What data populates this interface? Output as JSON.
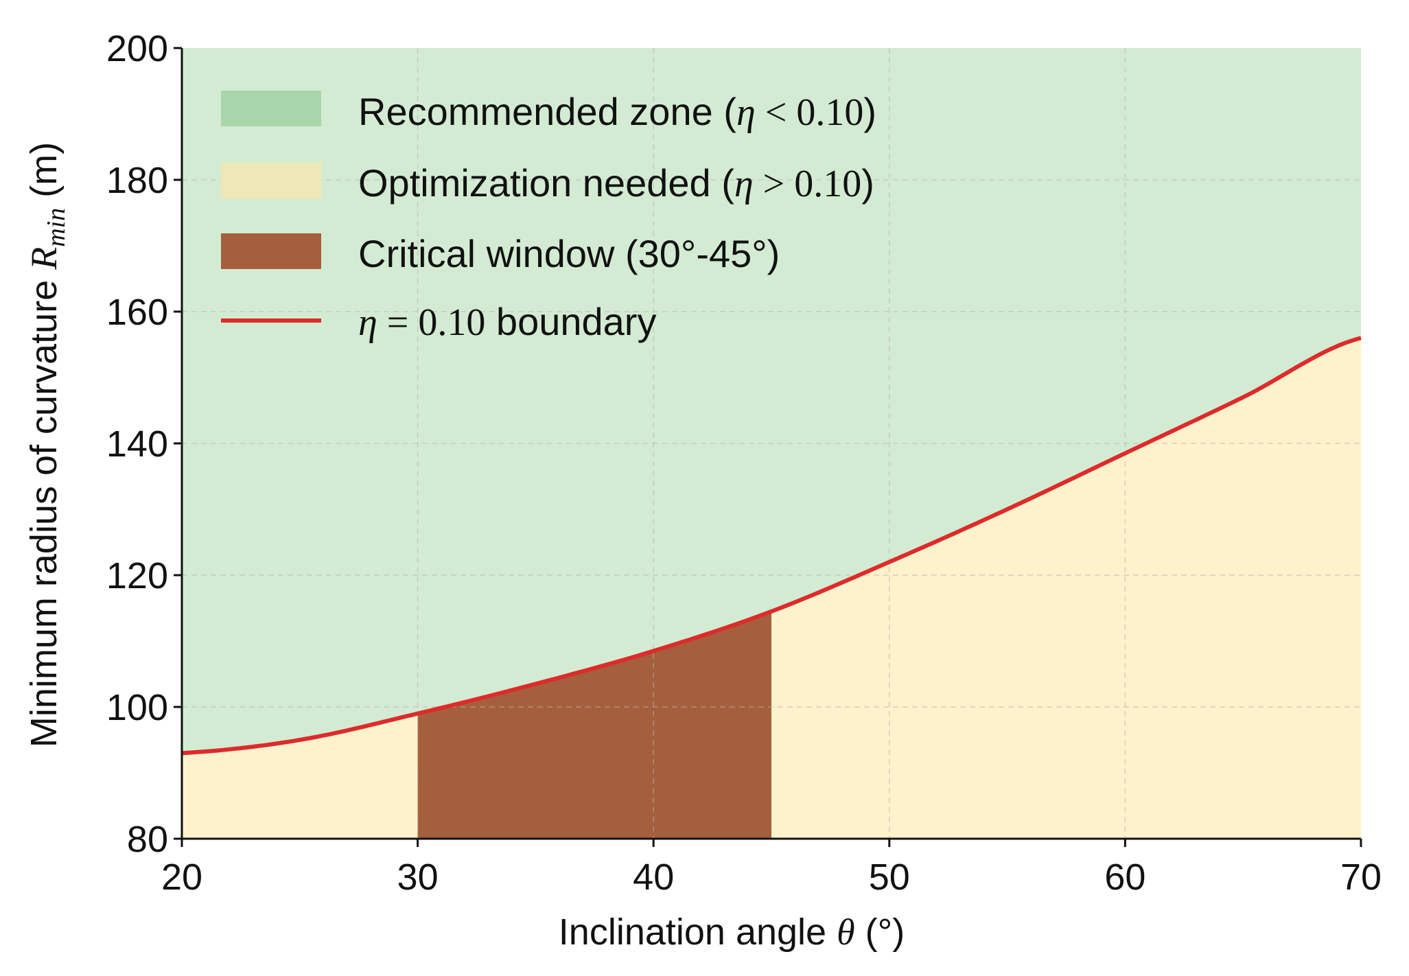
{
  "chart_data": {
    "type": "area",
    "xlabel": {
      "prefix": "Inclination angle ",
      "symbol": "θ",
      "suffix": " (°)"
    },
    "ylabel": {
      "prefix": "Minimum radius of curvature ",
      "symbol": "R",
      "subscript": "min",
      "suffix": " (m)"
    },
    "xlim": [
      20,
      70
    ],
    "ylim": [
      80,
      200
    ],
    "x_ticks": [
      20,
      30,
      40,
      50,
      60,
      70
    ],
    "y_ticks": [
      80,
      100,
      120,
      140,
      160,
      180,
      200
    ],
    "grid": true,
    "legend_position": "top-left",
    "legend": [
      {
        "key": "recommended",
        "text": "Recommended zone (",
        "math": "η",
        "rel": " < 0.10",
        "close": ")",
        "color": "#d4ebd3",
        "swatch": "#a8d5a9"
      },
      {
        "key": "optimization",
        "text": "Optimization needed (",
        "math": "η",
        "rel": " > 0.10",
        "close": ")",
        "color": "#fdf2cb",
        "swatch": "#efe8b6"
      },
      {
        "key": "critical",
        "text": "Critical window (30°-45°)",
        "color": "#a55f3c",
        "swatch": "#a55f3c"
      },
      {
        "key": "boundary",
        "math": "η",
        "rel": " = 0.10",
        "text": " boundary",
        "color": "#dd2b2b"
      }
    ],
    "series": [
      {
        "name": "η = 0.10 boundary",
        "x": [
          20,
          25,
          30,
          35,
          40,
          45,
          50,
          55,
          60,
          65,
          70
        ],
        "y": [
          93,
          95,
          99,
          103.5,
          108.5,
          114.5,
          122,
          130,
          138.5,
          147,
          156
        ]
      }
    ],
    "critical_window": [
      30,
      45
    ]
  }
}
